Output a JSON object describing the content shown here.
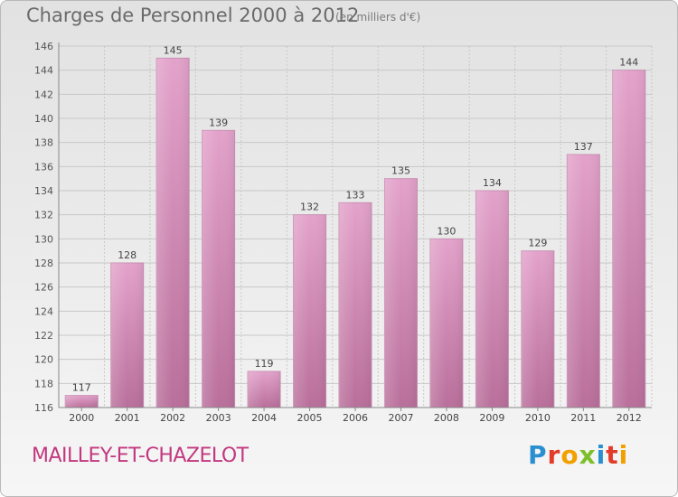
{
  "header": {
    "title": "Charges de Personnel 2000 à 2012",
    "subtitle": "(en milliers d'€)"
  },
  "footer": {
    "commune": "MAILLEY-ET-CHAZELOT",
    "brand": "Proxiti"
  },
  "colors": {
    "bar_top": "#e3a2ca",
    "bar_bottom": "#b96f9b",
    "bar_edge": "#c990b4",
    "commune_text": "#c2387f",
    "title_text": "#6a6a6a"
  },
  "chart_data": {
    "type": "bar",
    "categories": [
      "2000",
      "2001",
      "2002",
      "2003",
      "2004",
      "2005",
      "2006",
      "2007",
      "2008",
      "2009",
      "2010",
      "2011",
      "2012"
    ],
    "values": [
      117,
      128,
      145,
      139,
      119,
      132,
      133,
      135,
      130,
      134,
      129,
      137,
      144
    ],
    "ylim": [
      116,
      146
    ],
    "yticks": [
      116,
      118,
      120,
      122,
      124,
      126,
      128,
      130,
      132,
      134,
      136,
      138,
      140,
      142,
      144,
      146
    ],
    "grid": true
  }
}
